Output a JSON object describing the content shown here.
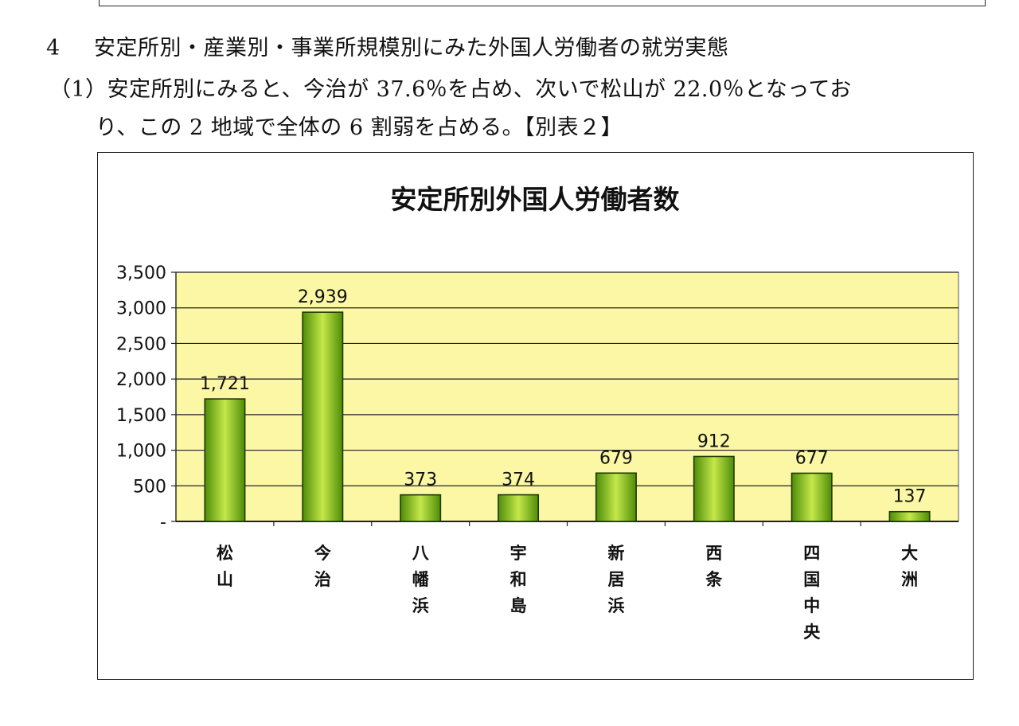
{
  "document": {
    "section_number": "4",
    "section_title": "安定所別・産業別・事業所規模別にみた外国人労働者の就労実態",
    "paragraph_line1": "（1）安定所別にみると、今治が 37.6％を占め、次いで松山が 22.0％となってお",
    "paragraph_line2": "り、この 2 地域で全体の 6 割弱を占める。【別表２】"
  },
  "chart_data": {
    "type": "bar",
    "title": "安定所別外国人労働者数",
    "categories": [
      "松山",
      "今治",
      "八幡浜",
      "宇和島",
      "新居浜",
      "西条",
      "四国中央",
      "大洲"
    ],
    "values": [
      1721,
      2939,
      373,
      374,
      679,
      912,
      677,
      137
    ],
    "data_labels": [
      "1,721",
      "2,939",
      "373",
      "374",
      "679",
      "912",
      "677",
      "137"
    ],
    "ylim": [
      0,
      3500
    ],
    "y_ticks": [
      0,
      500,
      1000,
      1500,
      2000,
      2500,
      3000,
      3500
    ],
    "y_tick_labels": [
      "-",
      "500",
      "1,000",
      "1,500",
      "2,000",
      "2,500",
      "3,000",
      "3,500"
    ],
    "xlabel": "",
    "ylabel": "",
    "grid": true,
    "legend": "none",
    "colors": {
      "plot_background": "#fbf7a5",
      "bar_light": "#c4e84a",
      "bar_dark": "#4e8c08",
      "bar_border": "#1f3a04",
      "gridline": "#222222"
    }
  }
}
